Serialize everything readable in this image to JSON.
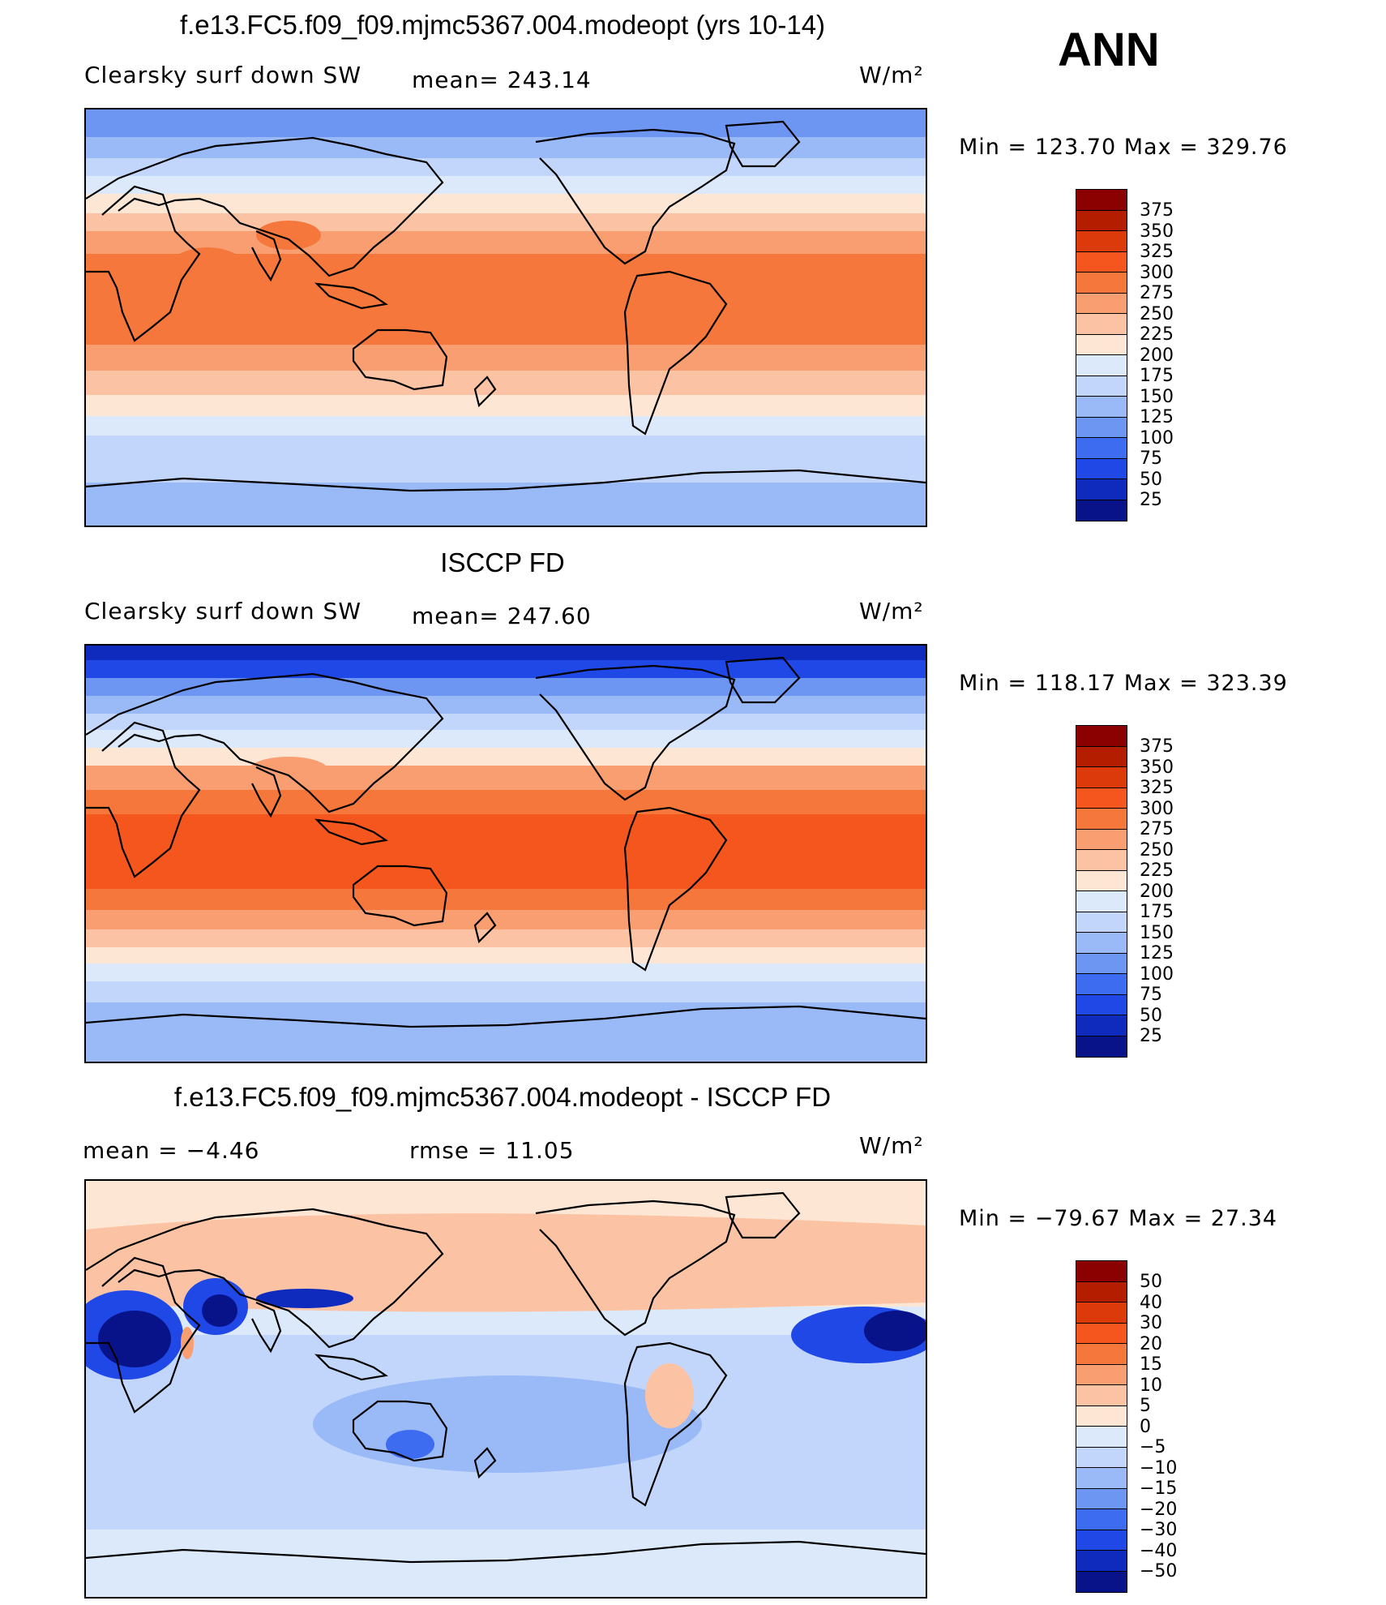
{
  "season": "ANN",
  "units_label": "W/m²",
  "panels": [
    {
      "title": "f.e13.FC5.f09_f09.mjmc5367.004.modeopt (yrs 10-14)",
      "variable": "Clearsky surf down SW",
      "stat_text": "mean=  243.14",
      "minmax_text": "Min  =  123.70  Max  =  329.76",
      "kind": "model"
    },
    {
      "title": "ISCCP FD",
      "variable": "Clearsky surf down SW",
      "stat_text": "mean=  247.60",
      "minmax_text": "Min  =  118.17  Max  =  323.39",
      "kind": "obs"
    },
    {
      "title": "f.e13.FC5.f09_f09.mjmc5367.004.modeopt - ISCCP FD",
      "variable": "mean  =    −4.46",
      "stat_text": "rmse  =    11.05",
      "minmax_text": "Min  =  −79.67  Max  =    27.34",
      "kind": "diff"
    }
  ],
  "colorbars": {
    "abs_levels": [
      "375",
      "350",
      "325",
      "300",
      "275",
      "250",
      "225",
      "200",
      "175",
      "150",
      "125",
      "100",
      "75",
      "50",
      "25"
    ],
    "abs_colors": [
      "#8b0000",
      "#b51d00",
      "#dd3a0c",
      "#f5561e",
      "#f5773c",
      "#f89e70",
      "#fbc3a4",
      "#fde6d4",
      "#dbe9fb",
      "#c1d6fa",
      "#99b9f7",
      "#6d96f2",
      "#3e6cf0",
      "#1f48e6",
      "#0f2bbd",
      "#08138a"
    ],
    "diff_levels": [
      "50",
      "40",
      "30",
      "20",
      "15",
      "10",
      "5",
      "0",
      "−5",
      "−10",
      "−15",
      "−20",
      "−30",
      "−40",
      "−50"
    ],
    "diff_colors": [
      "#8b0000",
      "#b51d00",
      "#dd3a0c",
      "#f5561e",
      "#f5773c",
      "#f89e70",
      "#fbc3a4",
      "#fde6d4",
      "#dbe9fb",
      "#c1d6fa",
      "#99b9f7",
      "#6d96f2",
      "#3e6cf0",
      "#1f48e6",
      "#0f2bbd",
      "#08138a"
    ]
  }
}
